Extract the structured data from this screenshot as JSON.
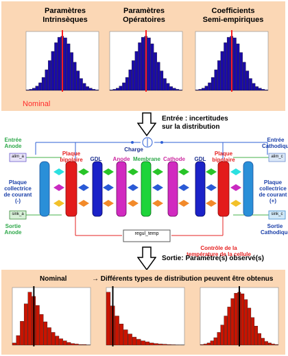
{
  "top": {
    "headings": [
      "Paramètres\nIntrinsèques",
      "Paramètres\nOpératoires",
      "Coefficients\nSemi-empiriques"
    ],
    "nominal_label": "Nominal"
  },
  "arrow1": {
    "text": "Entrée : incertitudes\nsur la distribution"
  },
  "diagram": {
    "entree_anode": "Entrée\nAnode",
    "entree_cathodique": "Entrée\nCathodique",
    "sortie_anode": "Sortie\nAnode",
    "sortie_cathodique": "Sortie\nCathodique",
    "plaque_collectrice_minus": "Plaque\ncollectrice\nde courant\n(-)",
    "plaque_collectrice_plus": "Plaque\ncollectrice\nde courant\n(+)",
    "plaque_bipolaire_left": "Plaque\nbipolaire",
    "plaque_bipolaire_right": "Plaque\nbipolaire",
    "charge": "Charge",
    "gdl_left": "GDL",
    "anode": "Anode",
    "membrane": "Membrane",
    "cathode": "Cathode",
    "gdl_right": "GDL",
    "regul_temp": "regul_temp",
    "controle": "Contrôle de la\ntempérature de la cellule",
    "alim_a": "alim_a",
    "alim_c": "alim_c",
    "sink_a": "sink_a",
    "sink_c": "sink_c"
  },
  "arrow2": {
    "text": "Sortie: Paramètre(s) observé(s)"
  },
  "bottom": {
    "nominal_label": "Nominal",
    "caption": "→ Différents types de distribution peuvent être obtenus"
  },
  "chart_data": [
    {
      "type": "bar",
      "series": "normal",
      "values": [
        1,
        2,
        4,
        8,
        14,
        24,
        38,
        55,
        72,
        88,
        98,
        100,
        97,
        86,
        70,
        52,
        36,
        22,
        13,
        7,
        4,
        2,
        1
      ],
      "nominal_index": 11,
      "ylim": [
        0,
        1300
      ],
      "color": "#1a0aa8"
    },
    {
      "type": "bar",
      "series": "normal",
      "values": [
        1,
        2,
        4,
        8,
        14,
        24,
        38,
        55,
        72,
        88,
        98,
        100,
        97,
        86,
        70,
        52,
        36,
        22,
        13,
        7,
        4,
        2,
        1
      ],
      "nominal_index": 11,
      "ylim": [
        0,
        1300
      ],
      "color": "#1a0aa8"
    },
    {
      "type": "bar",
      "series": "normal",
      "values": [
        1,
        2,
        4,
        8,
        14,
        24,
        38,
        55,
        72,
        88,
        98,
        100,
        97,
        86,
        70,
        52,
        36,
        22,
        13,
        7,
        4,
        2,
        1
      ],
      "nominal_index": 11,
      "ylim": [
        0,
        1300
      ],
      "color": "#1a0aa8"
    },
    {
      "type": "bar",
      "series": "skewed",
      "values": [
        4,
        18,
        45,
        78,
        100,
        92,
        75,
        58,
        44,
        33,
        24,
        17,
        12,
        8,
        5,
        3,
        2,
        1,
        1,
        0.5
      ],
      "nominal_index": 5,
      "ylim": [
        0,
        1400
      ],
      "color": "#c81400"
    },
    {
      "type": "bar",
      "series": "exponential",
      "values": [
        100,
        74,
        55,
        40,
        29,
        21,
        15,
        11,
        8,
        6,
        4,
        3,
        2,
        1.5,
        1,
        0.7,
        0.5,
        0.3
      ],
      "nominal_index": 1,
      "ylim": [
        0,
        1400
      ],
      "color": "#c81400"
    },
    {
      "type": "bar",
      "series": "normal-red",
      "values": [
        1,
        2,
        4,
        8,
        14,
        24,
        38,
        55,
        72,
        88,
        98,
        100,
        97,
        86,
        70,
        52,
        36,
        22,
        13,
        7,
        4,
        2,
        1
      ],
      "nominal_index": 11,
      "ylim": [
        0,
        1400
      ],
      "color": "#c81400"
    }
  ]
}
